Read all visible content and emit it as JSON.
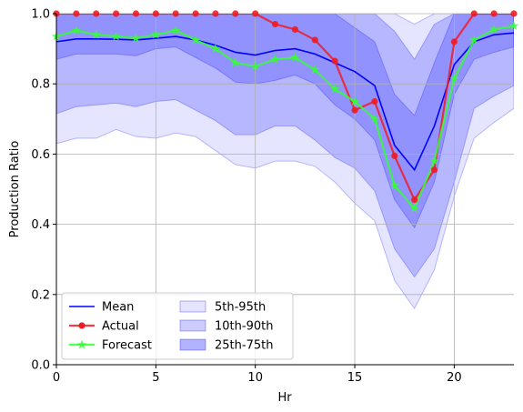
{
  "chart_data": {
    "type": "line",
    "title": "",
    "xlabel": "Hr",
    "ylabel": "Production Ratio",
    "xlim": [
      0,
      23
    ],
    "ylim": [
      0,
      1.0
    ],
    "grid": true,
    "legend_placement": "lower-left",
    "x_ticks": [
      "0",
      "5",
      "10",
      "15",
      "20"
    ],
    "y_ticks": [
      "0.0",
      "0.2",
      "0.4",
      "0.6",
      "0.8",
      "1.0"
    ],
    "x": [
      0,
      1,
      2,
      3,
      4,
      5,
      6,
      7,
      8,
      9,
      10,
      11,
      12,
      13,
      14,
      15,
      16,
      17,
      18,
      19,
      20,
      21,
      22,
      23
    ],
    "bands": [
      {
        "name": "5th-95th",
        "color": "#0000ff",
        "opacity": 0.1,
        "lower": [
          0.63,
          0.645,
          0.645,
          0.67,
          0.65,
          0.645,
          0.66,
          0.65,
          0.61,
          0.57,
          0.56,
          0.58,
          0.58,
          0.565,
          0.52,
          0.46,
          0.41,
          0.24,
          0.16,
          0.27,
          0.48,
          0.645,
          0.69,
          0.73
        ],
        "upper": [
          1.0,
          1.0,
          1.0,
          1.0,
          1.0,
          1.0,
          1.0,
          1.0,
          1.0,
          1.0,
          1.0,
          1.0,
          1.0,
          1.0,
          1.0,
          1.0,
          1.0,
          1.0,
          0.97,
          1.0,
          1.0,
          1.0,
          1.0,
          1.0
        ]
      },
      {
        "name": "10th-90th",
        "color": "#0000ff",
        "opacity": 0.2,
        "lower": [
          0.715,
          0.735,
          0.74,
          0.745,
          0.735,
          0.75,
          0.755,
          0.725,
          0.695,
          0.655,
          0.655,
          0.68,
          0.68,
          0.64,
          0.59,
          0.56,
          0.495,
          0.33,
          0.25,
          0.33,
          0.52,
          0.73,
          0.765,
          0.795
        ],
        "upper": [
          1.0,
          1.0,
          1.0,
          1.0,
          1.0,
          1.0,
          1.0,
          1.0,
          1.0,
          1.0,
          1.0,
          1.0,
          1.0,
          1.0,
          1.0,
          1.0,
          1.0,
          0.95,
          0.87,
          0.97,
          1.0,
          1.0,
          1.0,
          1.0
        ]
      },
      {
        "name": "25th-75th",
        "color": "#0000ff",
        "opacity": 0.2,
        "lower": [
          0.87,
          0.885,
          0.885,
          0.885,
          0.88,
          0.9,
          0.905,
          0.875,
          0.845,
          0.805,
          0.8,
          0.81,
          0.825,
          0.8,
          0.74,
          0.7,
          0.64,
          0.47,
          0.39,
          0.52,
          0.77,
          0.87,
          0.89,
          0.905
        ],
        "upper": [
          1.0,
          1.0,
          1.0,
          1.0,
          1.0,
          1.0,
          1.0,
          1.0,
          1.0,
          1.0,
          1.0,
          1.0,
          1.0,
          1.0,
          1.0,
          0.96,
          0.92,
          0.77,
          0.71,
          0.86,
          1.0,
          1.0,
          1.0,
          1.0
        ]
      }
    ],
    "series": [
      {
        "name": "Mean",
        "color": "#0000ff",
        "marker": "none",
        "values": [
          0.92,
          0.928,
          0.928,
          0.927,
          0.925,
          0.93,
          0.935,
          0.925,
          0.91,
          0.89,
          0.882,
          0.895,
          0.9,
          0.885,
          0.86,
          0.835,
          0.795,
          0.625,
          0.555,
          0.68,
          0.855,
          0.92,
          0.94,
          0.945
        ]
      },
      {
        "name": "Actual",
        "color": "#ee1c24",
        "marker": "circle",
        "values": [
          1.0,
          1.0,
          1.0,
          1.0,
          1.0,
          1.0,
          1.0,
          1.0,
          1.0,
          1.0,
          1.0,
          0.97,
          0.955,
          0.925,
          0.865,
          0.725,
          0.75,
          0.595,
          0.47,
          0.555,
          0.92,
          1.0,
          1.0,
          1.0
        ]
      },
      {
        "name": "Forecast",
        "color": "#33ff33",
        "marker": "star",
        "values": [
          0.935,
          0.952,
          0.94,
          0.935,
          0.93,
          0.94,
          0.952,
          0.925,
          0.9,
          0.86,
          0.85,
          0.87,
          0.875,
          0.84,
          0.785,
          0.75,
          0.7,
          0.51,
          0.445,
          0.58,
          0.815,
          0.925,
          0.955,
          0.965
        ]
      }
    ],
    "legend": [
      [
        "Mean",
        "Actual",
        "Forecast"
      ],
      [
        "5th-95th",
        "10th-90th",
        "25th-75th"
      ]
    ]
  }
}
